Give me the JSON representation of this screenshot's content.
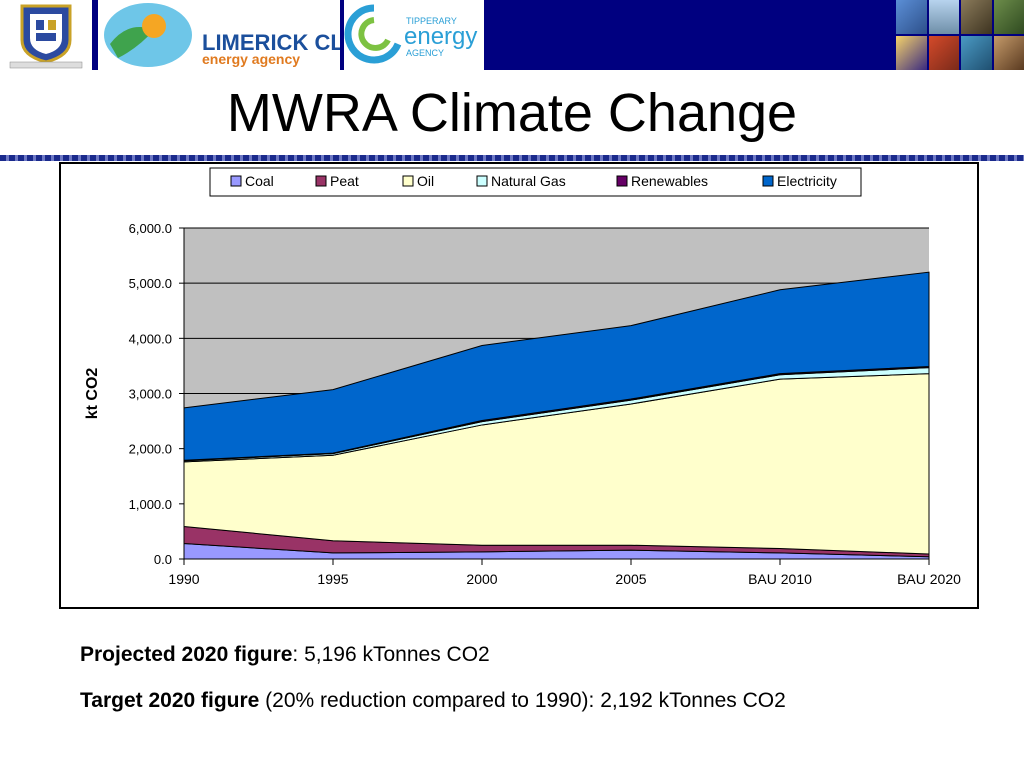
{
  "header": {
    "left_logo_text": "BORD RIGHIN MHUMHAIN LIMERICK CLARE",
    "lcea_line1": "LIMERICK CLARE",
    "lcea_line2": "energy agency",
    "tea_line1": "TIPPERARY",
    "tea_line2": "energy",
    "tea_line3": "AGENCY"
  },
  "slide": {
    "title": "MWRA Climate Change"
  },
  "chart_data": {
    "type": "area",
    "stacked": true,
    "categories": [
      "1990",
      "1995",
      "2000",
      "2005",
      "BAU 2010",
      "BAU 2020"
    ],
    "ylabel": "kt CO2",
    "ylim": [
      0,
      6000
    ],
    "yticks": [
      "0.0",
      "1,000.0",
      "2,000.0",
      "3,000.0",
      "4,000.0",
      "5,000.0",
      "6,000.0"
    ],
    "grid": true,
    "legend_position": "top",
    "plot_background": "#c0c0c0",
    "series": [
      {
        "name": "Coal",
        "color": "#9999ff",
        "values": [
          280,
          110,
          130,
          160,
          110,
          40
        ]
      },
      {
        "name": "Peat",
        "color": "#993366",
        "values": [
          310,
          220,
          120,
          90,
          80,
          50
        ]
      },
      {
        "name": "Oil",
        "color": "#ffffcc",
        "values": [
          1170,
          1550,
          2180,
          2560,
          3070,
          3270
        ]
      },
      {
        "name": "Natural Gas",
        "color": "#ccffff",
        "values": [
          20,
          30,
          60,
          70,
          80,
          110
        ]
      },
      {
        "name": "Renewables",
        "color": "#660066",
        "values": [
          10,
          10,
          20,
          20,
          20,
          20
        ]
      },
      {
        "name": "Electricity",
        "color": "#0066cc",
        "values": [
          950,
          1150,
          1360,
          1330,
          1520,
          1710
        ]
      }
    ]
  },
  "notes": {
    "projected_label": "Projected 2020 figure",
    "projected_text": ": 5,196 kTonnes CO2",
    "target_label": "Target 2020 figure",
    "target_text": " (20% reduction compared to 1990): 2,192 kTonnes CO2"
  }
}
